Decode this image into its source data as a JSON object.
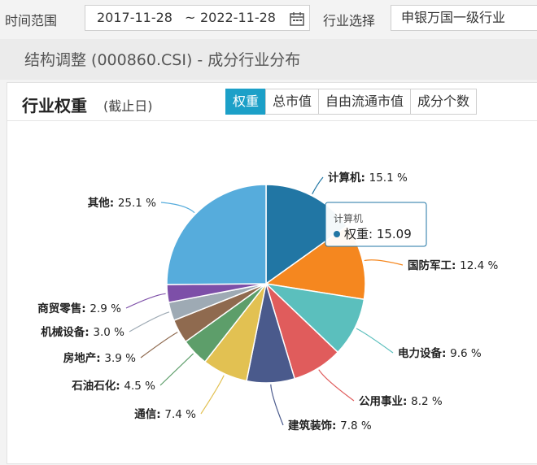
{
  "filters": {
    "date_label": "时间范围",
    "start_date": "2017-11-28",
    "separator": "~",
    "end_date": "2022-11-28",
    "industry_label": "行业选择",
    "industry_value": "申银万国一级行业"
  },
  "subtitle": "结构调整 (000860.CSI) - 成分行业分布",
  "panel": {
    "title": "行业权重",
    "note": "(截止日)",
    "tabs": [
      "权重",
      "总市值",
      "自由流通市值",
      "成分个数"
    ],
    "active_tab": 0
  },
  "colors": {
    "accent": "#1ca0c8"
  },
  "chart_data": {
    "type": "pie",
    "title": "",
    "unit": "%",
    "slices": [
      {
        "label": "计算机",
        "value": 15.1,
        "display": "15.1 %",
        "color": "#2176a4"
      },
      {
        "label": "国防军工",
        "value": 12.4,
        "display": "12.4 %",
        "color": "#f5871f"
      },
      {
        "label": "电力设备",
        "value": 9.6,
        "display": "9.6 %",
        "color": "#5bbfbd"
      },
      {
        "label": "公用事业",
        "value": 8.2,
        "display": "8.2 %",
        "color": "#e05c5c"
      },
      {
        "label": "建筑装饰",
        "value": 7.8,
        "display": "7.8 %",
        "color": "#4a5a8c"
      },
      {
        "label": "通信",
        "value": 7.4,
        "display": "7.4 %",
        "color": "#e2c152"
      },
      {
        "label": "石油石化",
        "value": 4.5,
        "display": "4.5 %",
        "color": "#5d9e6a"
      },
      {
        "label": "房地产",
        "value": 3.9,
        "display": "3.9 %",
        "color": "#8f6a4f"
      },
      {
        "label": "机械设备",
        "value": 3.0,
        "display": "3.0 %",
        "color": "#9eaab4"
      },
      {
        "label": "商贸零售",
        "value": 2.9,
        "display": "2.9 %",
        "color": "#7d4fa8"
      },
      {
        "label": "其他",
        "value": 25.1,
        "display": "25.1 %",
        "color": "#56acdc"
      }
    ],
    "tooltip": {
      "title": "计算机",
      "series_name": "权重",
      "value": "15.09"
    }
  }
}
